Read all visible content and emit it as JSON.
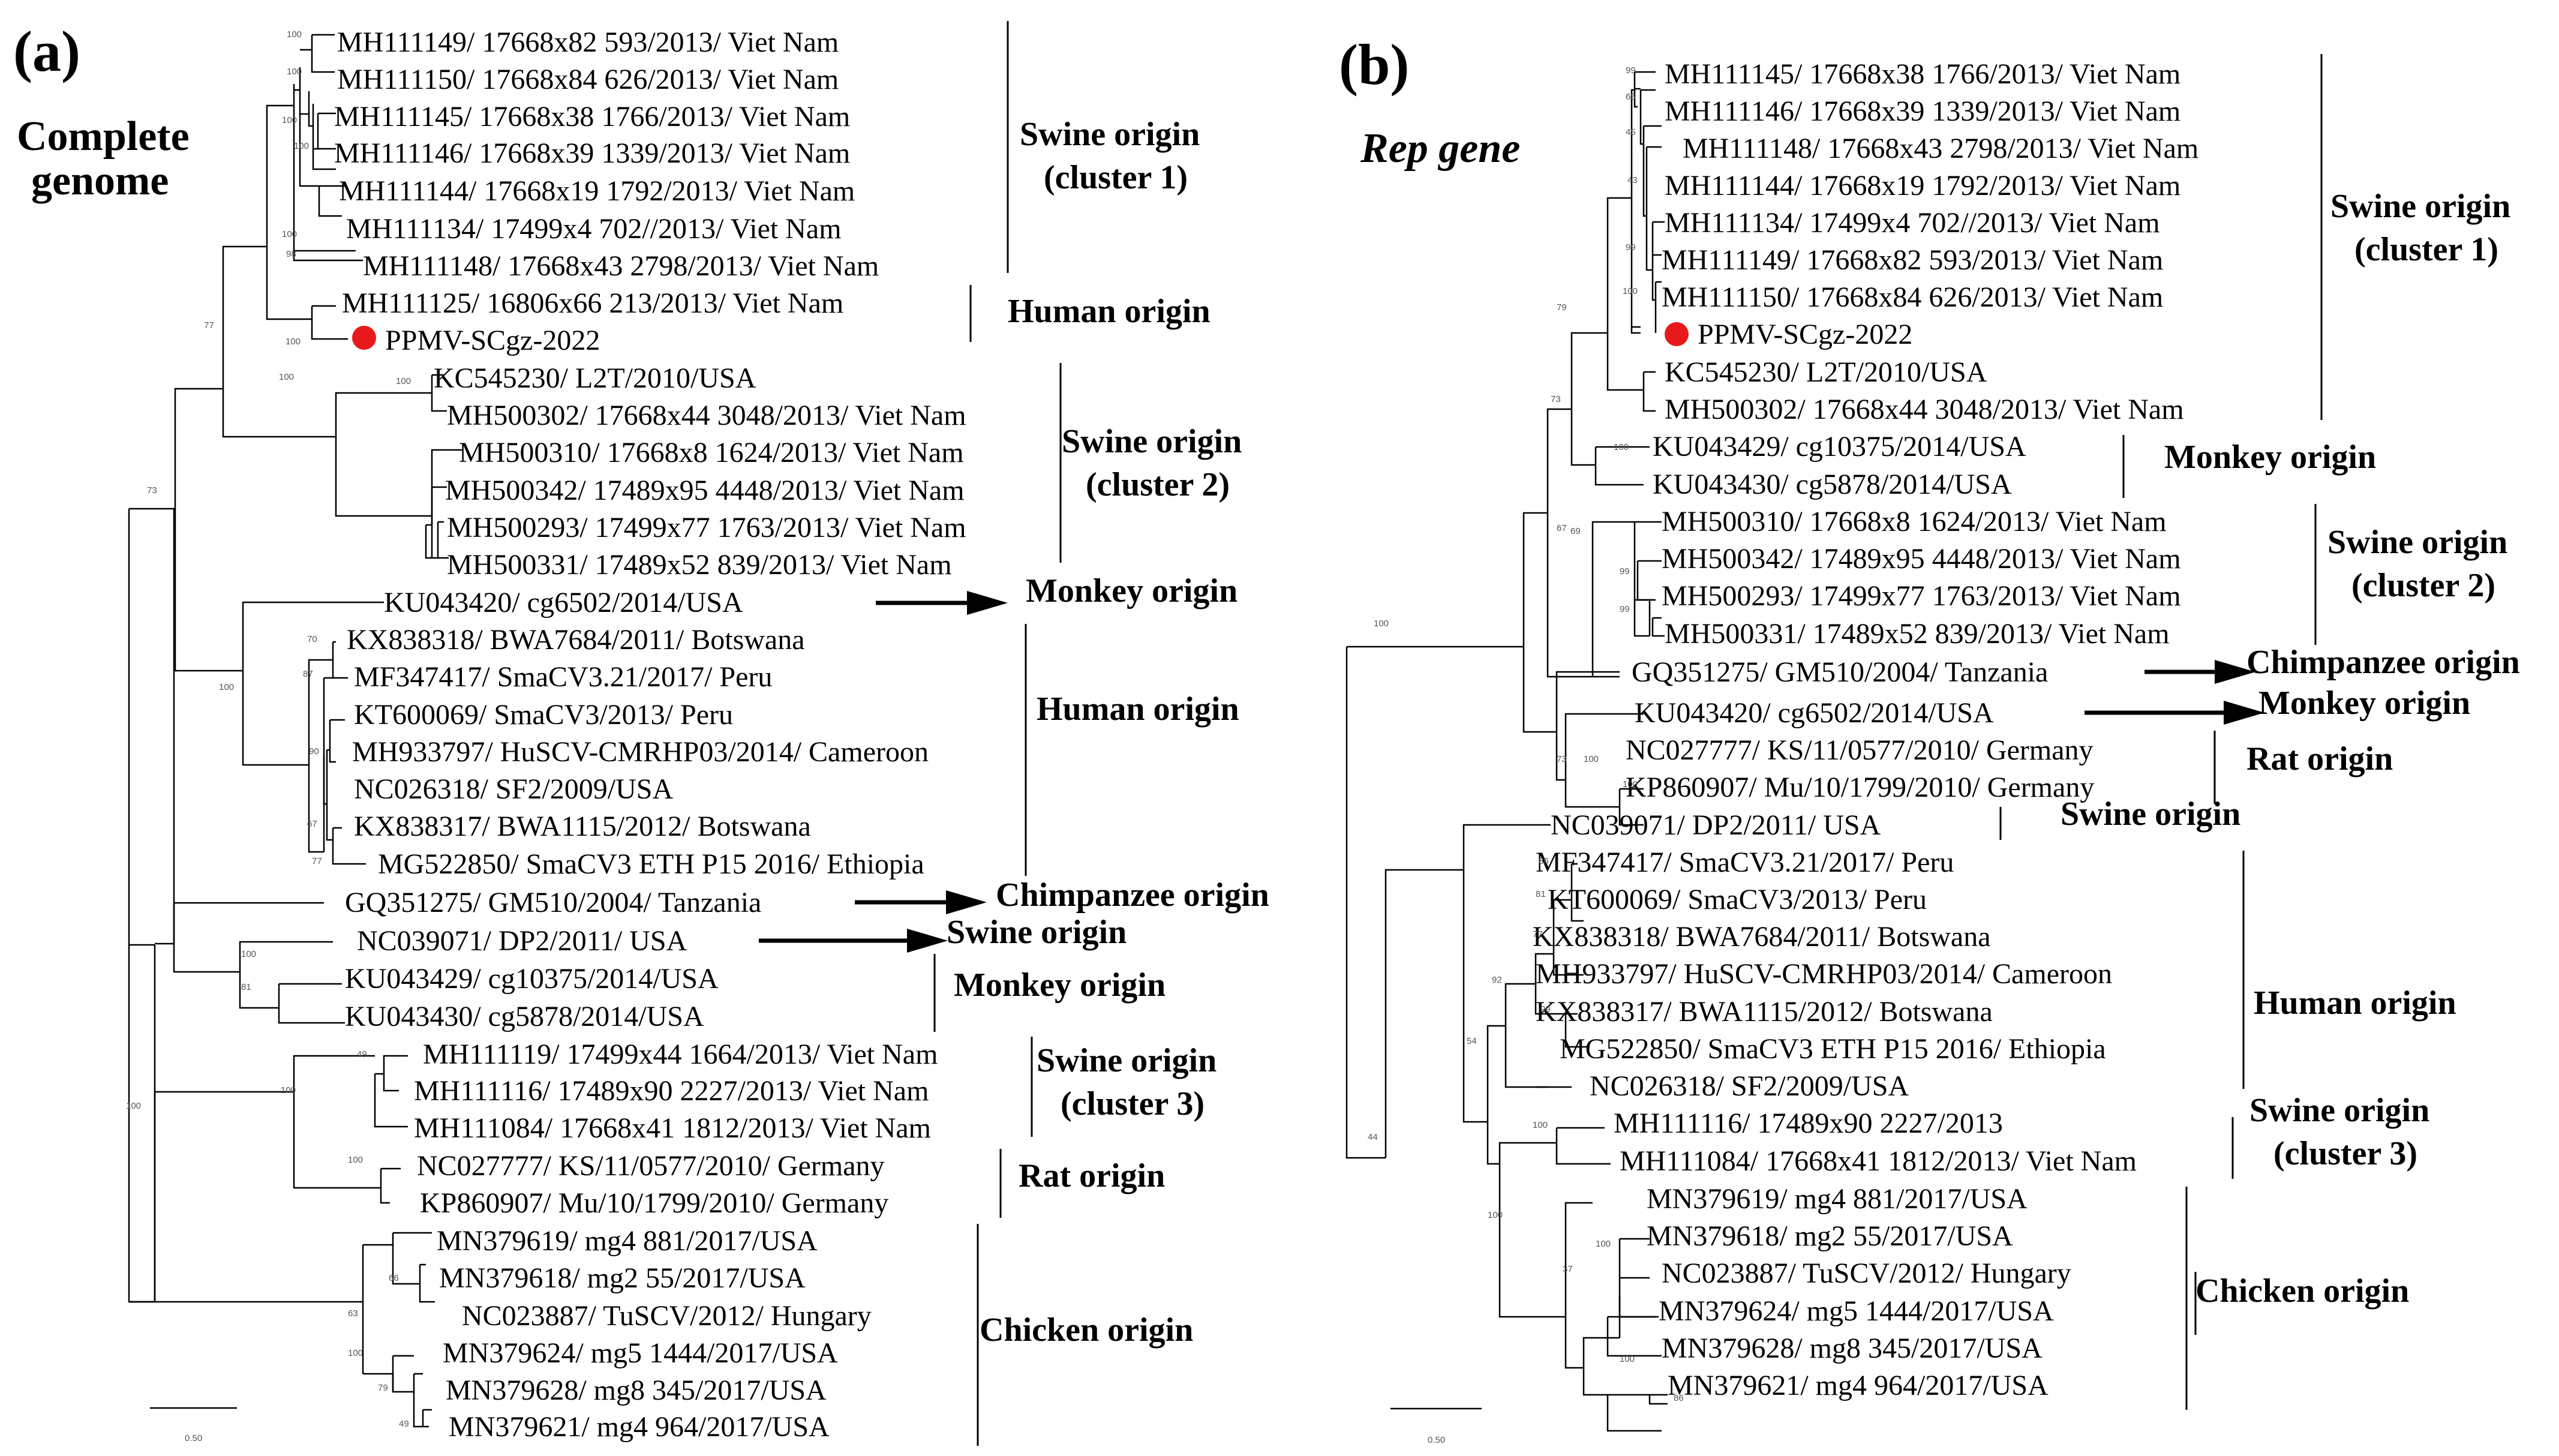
{
  "colors": {
    "marker": "#e8191b",
    "ink": "#000000"
  },
  "panels": [
    {
      "label": "(a)",
      "title_lines": [
        "Complete",
        "genome"
      ],
      "title_italic": false,
      "leaves": [
        "MH111149/ 17668x82 593/2013/ Viet Nam",
        "MH111150/ 17668x84 626/2013/ Viet Nam",
        "MH111145/ 17668x38 1766/2013/ Viet Nam",
        "MH111146/ 17668x39 1339/2013/ Viet Nam",
        "MH111144/ 17668x19 1792/2013/ Viet Nam",
        "MH111134/ 17499x4 702//2013/ Viet Nam",
        "MH111148/ 17668x43 2798/2013/ Viet Nam",
        "MH111125/ 16806x66 213/2013/ Viet Nam",
        "PPMV-SCgz-2022",
        "KC545230/ L2T/2010/USA",
        "MH500302/ 17668x44 3048/2013/ Viet Nam",
        "MH500310/ 17668x8 1624/2013/ Viet Nam",
        "MH500342/ 17489x95 4448/2013/ Viet Nam",
        "MH500293/ 17499x77 1763/2013/ Viet Nam",
        "MH500331/ 17489x52 839/2013/ Viet Nam",
        "KU043420/ cg6502/2014/USA",
        "KX838318/ BWA7684/2011/ Botswana",
        "MF347417/ SmaCV3.21/2017/ Peru",
        "KT600069/ SmaCV3/2013/ Peru",
        "MH933797/ HuSCV-CMRHP03/2014/ Cameroon",
        "NC026318/ SF2/2009/USA",
        "KX838317/ BWA1115/2012/ Botswana",
        "MG522850/ SmaCV3 ETH P15 2016/ Ethiopia",
        "GQ351275/ GM510/2004/ Tanzania",
        "NC039071/ DP2/2011/ USA",
        "KU043429/ cg10375/2014/USA",
        "KU043430/ cg5878/2014/USA",
        "MH111119/ 17499x44 1664/2013/ Viet Nam",
        "MH111116/ 17489x90 2227/2013/ Viet Nam",
        "MH111084/ 17668x41 1812/2013/ Viet Nam",
        "NC027777/ KS/11/0577/2010/ Germany",
        "KP860907/ Mu/10/1799/2010/ Germany",
        "MN379619/ mg4 881/2017/USA",
        "MN379618/ mg2 55/2017/USA",
        "NC023887/ TuSCV/2012/ Hungary",
        "MN379624/ mg5 1444/2017/USA",
        "MN379628/ mg8 345/2017/USA",
        "MN379621/ mg4 964/2017/USA"
      ],
      "groups": [
        {
          "lines": [
            "Swine origin",
            "(cluster 1)"
          ]
        },
        {
          "lines": [
            "Human origin"
          ]
        },
        {
          "lines": [
            "Swine origin",
            "(cluster 2)"
          ]
        },
        {
          "lines": [
            "Monkey origin"
          ]
        },
        {
          "lines": [
            "Human origin"
          ]
        },
        {
          "lines": [
            "Chimpanzee origin"
          ]
        },
        {
          "lines": [
            "Swine origin"
          ]
        },
        {
          "lines": [
            "Monkey origin"
          ]
        },
        {
          "lines": [
            "Swine origin",
            "(cluster 3)"
          ]
        },
        {
          "lines": [
            "Rat origin"
          ]
        },
        {
          "lines": [
            "Chicken origin"
          ]
        }
      ],
      "bootstrap": [
        "100",
        "100",
        "100",
        "100",
        "98",
        "100",
        "77",
        "100",
        "100",
        "100",
        "73",
        "100",
        "70",
        "87",
        "90",
        "67",
        "77",
        "100",
        "81",
        "49",
        "100",
        "100",
        "100",
        "63",
        "66",
        "100",
        "79",
        "49"
      ],
      "scale_label": "0.50"
    },
    {
      "label": "(b)",
      "title_lines": [
        "Rep gene"
      ],
      "title_italic": true,
      "leaves": [
        "MH111145/ 17668x38 1766/2013/ Viet Nam",
        "MH111146/ 17668x39 1339/2013/ Viet Nam",
        "MH111148/ 17668x43 2798/2013/ Viet Nam",
        "MH111144/ 17668x19 1792/2013/ Viet Nam",
        "MH111134/ 17499x4 702//2013/ Viet Nam",
        "MH111149/ 17668x82 593/2013/ Viet Nam",
        "MH111150/ 17668x84 626/2013/ Viet Nam",
        "PPMV-SCgz-2022",
        "KC545230/ L2T/2010/USA",
        "MH500302/ 17668x44 3048/2013/ Viet Nam",
        "KU043429/ cg10375/2014/USA",
        "KU043430/ cg5878/2014/USA",
        "MH500310/ 17668x8 1624/2013/ Viet Nam",
        "MH500342/ 17489x95 4448/2013/ Viet Nam",
        "MH500293/ 17499x77 1763/2013/ Viet Nam",
        "MH500331/ 17489x52 839/2013/ Viet Nam",
        "GQ351275/ GM510/2004/ Tanzania",
        "KU043420/ cg6502/2014/USA",
        "NC027777/ KS/11/0577/2010/ Germany",
        "KP860907/ Mu/10/1799/2010/ Germany",
        "NC039071/ DP2/2011/ USA",
        "MF347417/ SmaCV3.21/2017/ Peru",
        "KT600069/ SmaCV3/2013/ Peru",
        "KX838318/ BWA7684/2011/ Botswana",
        "MH933797/ HuSCV-CMRHP03/2014/ Cameroon",
        "KX838317/ BWA1115/2012/ Botswana",
        "MG522850/ SmaCV3 ETH P15 2016/ Ethiopia",
        "NC026318/ SF2/2009/USA",
        "MH111116/ 17489x90 2227/2013",
        "MH111084/ 17668x41 1812/2013/ Viet Nam",
        "MN379619/ mg4 881/2017/USA",
        "MN379618/ mg2 55/2017/USA",
        "NC023887/ TuSCV/2012/ Hungary",
        "MN379624/ mg5 1444/2017/USA",
        "MN379628/ mg8 345/2017/USA",
        "MN379621/ mg4 964/2017/USA"
      ],
      "groups": [
        {
          "lines": [
            "Swine origin",
            "(cluster 1)"
          ]
        },
        {
          "lines": [
            "Monkey origin"
          ]
        },
        {
          "lines": [
            "Swine origin",
            "(cluster 2)"
          ]
        },
        {
          "lines": [
            "Chimpanzee origin"
          ]
        },
        {
          "lines": [
            "Monkey origin"
          ]
        },
        {
          "lines": [
            "Rat origin"
          ]
        },
        {
          "lines": [
            "Swine origin"
          ]
        },
        {
          "lines": [
            "Human origin"
          ]
        },
        {
          "lines": [
            "Swine origin",
            "(cluster 3)"
          ]
        },
        {
          "lines": [
            "Chicken origin"
          ]
        }
      ],
      "bootstrap": [
        "99",
        "65",
        "45",
        "43",
        "99",
        "100",
        "79",
        "73",
        "100",
        "69",
        "99",
        "100",
        "99",
        "67",
        "100",
        "73",
        "100",
        "86",
        "81",
        "77",
        "99",
        "92",
        "54",
        "100",
        "44",
        "100",
        "100",
        "37",
        "100",
        "86"
      ],
      "scale_label": "0.50"
    }
  ]
}
